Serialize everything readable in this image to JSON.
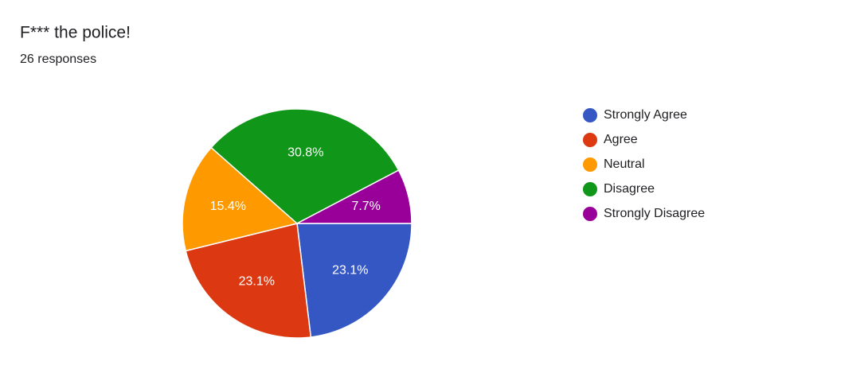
{
  "chart_data": {
    "type": "pie",
    "title": "F*** the police!",
    "subtitle": "26 responses",
    "categories": [
      "Strongly Agree",
      "Agree",
      "Neutral",
      "Disagree",
      "Strongly Disagree"
    ],
    "values": [
      23.1,
      23.1,
      15.4,
      30.8,
      7.7
    ],
    "value_labels": [
      "23.1%",
      "23.1%",
      "15.4%",
      "30.8%",
      "7.7%"
    ],
    "colors": [
      "#3557c4",
      "#dc3912",
      "#ff9900",
      "#109618",
      "#990099"
    ],
    "legend": "right"
  }
}
